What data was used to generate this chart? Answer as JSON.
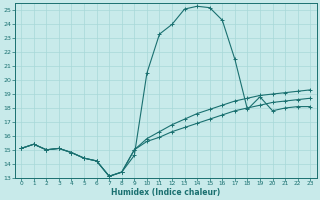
{
  "xlabel": "Humidex (Indice chaleur)",
  "xlim": [
    -0.5,
    23.5
  ],
  "ylim": [
    13,
    25.5
  ],
  "xticks": [
    0,
    1,
    2,
    3,
    4,
    5,
    6,
    7,
    8,
    9,
    10,
    11,
    12,
    13,
    14,
    15,
    16,
    17,
    18,
    19,
    20,
    21,
    22,
    23
  ],
  "yticks": [
    13,
    14,
    15,
    16,
    17,
    18,
    19,
    20,
    21,
    22,
    23,
    24,
    25
  ],
  "bg_color": "#c8eaea",
  "line_color": "#1a7070",
  "grid_color": "#a8d8d8",
  "line1_x": [
    0,
    1,
    2,
    3,
    4,
    5,
    6,
    7,
    8,
    9,
    10,
    11,
    12,
    13,
    14,
    15,
    16,
    17,
    18,
    19,
    20,
    21,
    22,
    23
  ],
  "line1_y": [
    15.1,
    15.4,
    15.0,
    15.1,
    14.8,
    14.4,
    14.2,
    13.1,
    13.4,
    14.6,
    20.5,
    23.3,
    24.0,
    25.1,
    25.3,
    25.2,
    24.3,
    21.5,
    17.9,
    18.8,
    17.8,
    18.0,
    18.1,
    18.1
  ],
  "line2_x": [
    0,
    1,
    2,
    3,
    4,
    5,
    6,
    7,
    8,
    9,
    10,
    11,
    12,
    13,
    14,
    15,
    16,
    17,
    18,
    19,
    20,
    21,
    22,
    23
  ],
  "line2_y": [
    15.1,
    15.4,
    15.0,
    15.1,
    14.8,
    14.4,
    14.2,
    13.1,
    13.4,
    15.0,
    15.8,
    16.3,
    16.8,
    17.2,
    17.6,
    17.9,
    18.2,
    18.5,
    18.7,
    18.9,
    19.0,
    19.1,
    19.2,
    19.3
  ],
  "line3_x": [
    0,
    1,
    2,
    3,
    4,
    5,
    6,
    7,
    8,
    9,
    10,
    11,
    12,
    13,
    14,
    15,
    16,
    17,
    18,
    19,
    20,
    21,
    22,
    23
  ],
  "line3_y": [
    15.1,
    15.4,
    15.0,
    15.1,
    14.8,
    14.4,
    14.2,
    13.1,
    13.4,
    15.0,
    15.6,
    15.9,
    16.3,
    16.6,
    16.9,
    17.2,
    17.5,
    17.8,
    18.0,
    18.2,
    18.4,
    18.5,
    18.6,
    18.7
  ]
}
